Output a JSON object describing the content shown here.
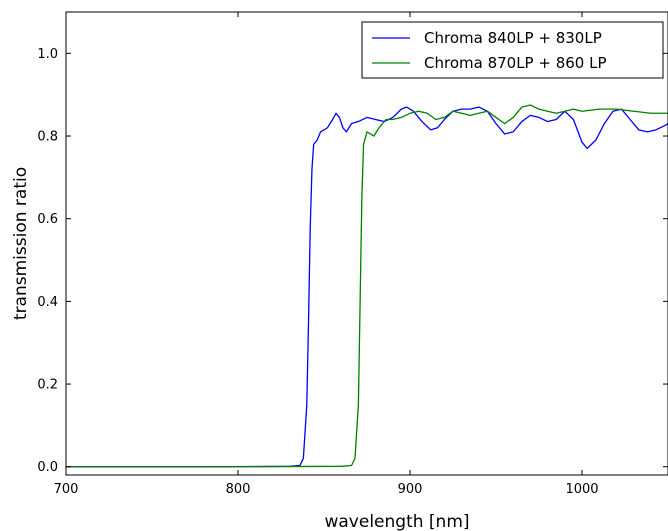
{
  "chart_data": {
    "type": "line",
    "title": "",
    "xlabel": "wavelength [nm]",
    "ylabel": "transmission ratio",
    "xlim": [
      700,
      1050
    ],
    "ylim": [
      -0.02,
      1.1
    ],
    "x_ticks": [
      700,
      800,
      900,
      1000
    ],
    "y_ticks": [
      0.0,
      0.2,
      0.4,
      0.6,
      0.8,
      1.0
    ],
    "x_tick_labels": [
      "700",
      "800",
      "900",
      "1000"
    ],
    "y_tick_labels": [
      "0.0",
      "0.2",
      "0.4",
      "0.6",
      "0.8",
      "1.0"
    ],
    "grid": false,
    "legend_position": "top-right",
    "series": [
      {
        "name": "Chroma 840LP + 830LP",
        "color": "#0000ff",
        "points": [
          [
            700,
            0.0
          ],
          [
            780,
            0.0
          ],
          [
            830,
            0.001
          ],
          [
            836,
            0.003
          ],
          [
            838,
            0.02
          ],
          [
            840,
            0.15
          ],
          [
            841,
            0.35
          ],
          [
            842,
            0.58
          ],
          [
            843,
            0.72
          ],
          [
            844,
            0.78
          ],
          [
            846,
            0.79
          ],
          [
            848,
            0.81
          ],
          [
            850,
            0.815
          ],
          [
            852,
            0.82
          ],
          [
            855,
            0.84
          ],
          [
            857,
            0.855
          ],
          [
            859,
            0.845
          ],
          [
            861,
            0.82
          ],
          [
            863,
            0.81
          ],
          [
            866,
            0.83
          ],
          [
            870,
            0.835
          ],
          [
            875,
            0.845
          ],
          [
            880,
            0.84
          ],
          [
            885,
            0.835
          ],
          [
            890,
            0.845
          ],
          [
            895,
            0.865
          ],
          [
            898,
            0.87
          ],
          [
            902,
            0.86
          ],
          [
            907,
            0.835
          ],
          [
            912,
            0.815
          ],
          [
            916,
            0.82
          ],
          [
            920,
            0.84
          ],
          [
            925,
            0.86
          ],
          [
            930,
            0.865
          ],
          [
            935,
            0.865
          ],
          [
            940,
            0.87
          ],
          [
            945,
            0.86
          ],
          [
            950,
            0.83
          ],
          [
            955,
            0.805
          ],
          [
            960,
            0.81
          ],
          [
            965,
            0.835
          ],
          [
            970,
            0.85
          ],
          [
            975,
            0.845
          ],
          [
            980,
            0.835
          ],
          [
            985,
            0.84
          ],
          [
            990,
            0.86
          ],
          [
            995,
            0.84
          ],
          [
            1000,
            0.785
          ],
          [
            1003,
            0.77
          ],
          [
            1008,
            0.79
          ],
          [
            1013,
            0.83
          ],
          [
            1018,
            0.86
          ],
          [
            1023,
            0.865
          ],
          [
            1028,
            0.84
          ],
          [
            1033,
            0.815
          ],
          [
            1038,
            0.81
          ],
          [
            1043,
            0.815
          ],
          [
            1048,
            0.825
          ],
          [
            1050,
            0.83
          ]
        ]
      },
      {
        "name": "Chroma 870LP + 860 LP",
        "color": "#008000",
        "points": [
          [
            700,
            0.0
          ],
          [
            800,
            0.0
          ],
          [
            860,
            0.001
          ],
          [
            866,
            0.003
          ],
          [
            868,
            0.02
          ],
          [
            870,
            0.15
          ],
          [
            871,
            0.4
          ],
          [
            872,
            0.65
          ],
          [
            873,
            0.78
          ],
          [
            875,
            0.81
          ],
          [
            877,
            0.805
          ],
          [
            879,
            0.8
          ],
          [
            882,
            0.82
          ],
          [
            886,
            0.84
          ],
          [
            890,
            0.84
          ],
          [
            895,
            0.845
          ],
          [
            900,
            0.855
          ],
          [
            905,
            0.86
          ],
          [
            910,
            0.855
          ],
          [
            915,
            0.84
          ],
          [
            920,
            0.845
          ],
          [
            925,
            0.86
          ],
          [
            930,
            0.855
          ],
          [
            935,
            0.85
          ],
          [
            940,
            0.855
          ],
          [
            945,
            0.86
          ],
          [
            950,
            0.845
          ],
          [
            955,
            0.83
          ],
          [
            960,
            0.845
          ],
          [
            965,
            0.87
          ],
          [
            970,
            0.875
          ],
          [
            975,
            0.865
          ],
          [
            980,
            0.86
          ],
          [
            985,
            0.855
          ],
          [
            990,
            0.86
          ],
          [
            995,
            0.865
          ],
          [
            1000,
            0.86
          ],
          [
            1010,
            0.865
          ],
          [
            1020,
            0.865
          ],
          [
            1030,
            0.86
          ],
          [
            1040,
            0.855
          ],
          [
            1050,
            0.855
          ]
        ]
      }
    ]
  }
}
